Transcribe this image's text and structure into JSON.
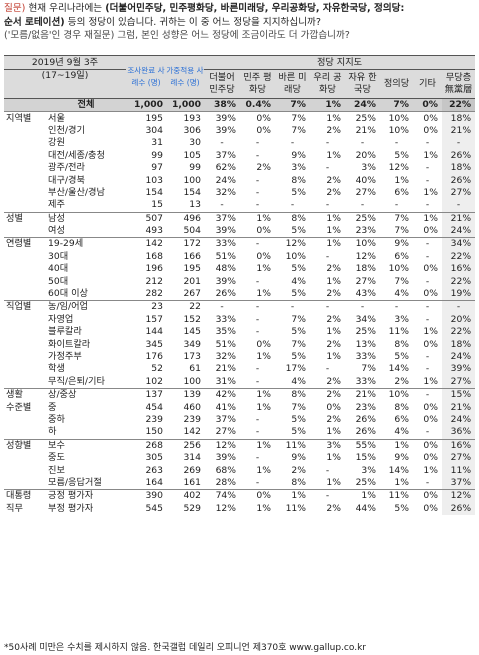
{
  "question": {
    "tag": "질문)",
    "pre": "현재 우리나라에는",
    "parties": "(더불어민주당, 민주평화당, 바른미래당, 우리공화당, 자유한국당, 정의당:",
    "line2_hl": "순서 로테이션)",
    "line2_rest": "등의 정당이 있습니다. 귀하는 이 중 어느 정당을 지지하십니까?",
    "note": "('모름/없음'인 경우 재질문) 그럼, 본인 성향은 어느 정당에 조금이라도 더 가깝습니까?"
  },
  "header": {
    "period": "2019년 9월 3주",
    "dates": "(17~19일)",
    "sample": "조사완료 사례수 (명)",
    "weighted": "가중적용 사례수 (명)",
    "group": "정당 지지도",
    "parties": [
      "더불어 민주당",
      "민주 평화당",
      "바른 미래당",
      "우리 공화당",
      "자유 한국당",
      "정의당",
      "기타",
      "무당층 無黨層"
    ]
  },
  "colors": {
    "blue": "#2a6fd6",
    "red": "#d62728",
    "header_bg": "#dcdcdc"
  },
  "rows": [
    {
      "g": "",
      "s": "전체",
      "n": "1,000",
      "w": "1,000",
      "v": [
        "38%",
        "0.4%",
        "7%",
        "1%",
        "24%",
        "7%",
        "0%",
        "22%"
      ],
      "total": true
    },
    {
      "g": "지역별",
      "s": "서울",
      "n": "195",
      "w": "193",
      "v": [
        "39%",
        "0%",
        "7%",
        "1%",
        "25%",
        "10%",
        "0%",
        "18%"
      ],
      "gs": true
    },
    {
      "g": "",
      "s": "인천/경기",
      "n": "304",
      "w": "306",
      "v": [
        "39%",
        "0%",
        "7%",
        "2%",
        "21%",
        "10%",
        "0%",
        "21%"
      ]
    },
    {
      "g": "",
      "s": "강원",
      "n": "31",
      "w": "30",
      "v": [
        "-",
        "-",
        "-",
        "-",
        "-",
        "-",
        "-",
        "-"
      ]
    },
    {
      "g": "",
      "s": "대전/세종/충청",
      "n": "99",
      "w": "105",
      "v": [
        "37%",
        "-",
        "9%",
        "1%",
        "20%",
        "5%",
        "1%",
        "26%"
      ]
    },
    {
      "g": "",
      "s": "광주/전라",
      "n": "97",
      "w": "99",
      "v": [
        "62%",
        "2%",
        "3%",
        "-",
        "3%",
        "12%",
        "-",
        "18%"
      ]
    },
    {
      "g": "",
      "s": "대구/경북",
      "n": "103",
      "w": "100",
      "v": [
        "24%",
        "-",
        "8%",
        "2%",
        "40%",
        "1%",
        "-",
        "26%"
      ]
    },
    {
      "g": "",
      "s": "부산/울산/경남",
      "n": "154",
      "w": "154",
      "v": [
        "32%",
        "-",
        "5%",
        "2%",
        "27%",
        "6%",
        "1%",
        "27%"
      ]
    },
    {
      "g": "",
      "s": "제주",
      "n": "15",
      "w": "13",
      "v": [
        "-",
        "-",
        "-",
        "-",
        "-",
        "-",
        "-",
        "-"
      ]
    },
    {
      "g": "성별",
      "s": "남성",
      "n": "507",
      "w": "496",
      "v": [
        "37%",
        "1%",
        "8%",
        "1%",
        "25%",
        "7%",
        "1%",
        "21%"
      ],
      "gs": true
    },
    {
      "g": "",
      "s": "여성",
      "n": "493",
      "w": "504",
      "v": [
        "39%",
        "0%",
        "5%",
        "1%",
        "23%",
        "7%",
        "0%",
        "24%"
      ]
    },
    {
      "g": "연령별",
      "s": "19-29세",
      "n": "142",
      "w": "172",
      "v": [
        "33%",
        "-",
        "12%",
        "1%",
        "10%",
        "9%",
        "-",
        "34%"
      ],
      "gs": true
    },
    {
      "g": "",
      "s": "30대",
      "n": "168",
      "w": "166",
      "v": [
        "51%",
        "0%",
        "10%",
        "-",
        "12%",
        "6%",
        "-",
        "22%"
      ]
    },
    {
      "g": "",
      "s": "40대",
      "n": "196",
      "w": "195",
      "v": [
        "48%",
        "1%",
        "5%",
        "2%",
        "18%",
        "10%",
        "0%",
        "16%"
      ]
    },
    {
      "g": "",
      "s": "50대",
      "n": "212",
      "w": "201",
      "v": [
        "39%",
        "-",
        "4%",
        "1%",
        "27%",
        "7%",
        "-",
        "22%"
      ]
    },
    {
      "g": "",
      "s": "60대 이상",
      "n": "282",
      "w": "267",
      "v": [
        "26%",
        "1%",
        "5%",
        "2%",
        "43%",
        "4%",
        "0%",
        "19%"
      ]
    },
    {
      "g": "직업별",
      "s": "농/임/어업",
      "n": "23",
      "w": "22",
      "v": [
        "-",
        "-",
        "-",
        "-",
        "-",
        "-",
        "-",
        "-"
      ],
      "gs": true
    },
    {
      "g": "",
      "s": "자영업",
      "n": "157",
      "w": "152",
      "v": [
        "33%",
        "-",
        "7%",
        "2%",
        "34%",
        "3%",
        "-",
        "20%"
      ]
    },
    {
      "g": "",
      "s": "블루칼라",
      "n": "144",
      "w": "145",
      "v": [
        "35%",
        "-",
        "5%",
        "1%",
        "25%",
        "11%",
        "1%",
        "22%"
      ]
    },
    {
      "g": "",
      "s": "화이트칼라",
      "n": "345",
      "w": "349",
      "v": [
        "51%",
        "0%",
        "7%",
        "2%",
        "13%",
        "8%",
        "0%",
        "18%"
      ]
    },
    {
      "g": "",
      "s": "가정주부",
      "n": "176",
      "w": "173",
      "v": [
        "32%",
        "1%",
        "5%",
        "1%",
        "33%",
        "5%",
        "-",
        "24%"
      ]
    },
    {
      "g": "",
      "s": "학생",
      "n": "52",
      "w": "61",
      "v": [
        "21%",
        "-",
        "17%",
        "-",
        "7%",
        "14%",
        "-",
        "39%"
      ]
    },
    {
      "g": "",
      "s": "무직/은퇴/기타",
      "n": "102",
      "w": "100",
      "v": [
        "31%",
        "-",
        "4%",
        "2%",
        "33%",
        "2%",
        "1%",
        "27%"
      ]
    },
    {
      "g": "생활",
      "s": "상/중상",
      "n": "137",
      "w": "139",
      "v": [
        "42%",
        "1%",
        "8%",
        "2%",
        "21%",
        "10%",
        "-",
        "15%"
      ],
      "gs": true
    },
    {
      "g": "수준별",
      "s": "중",
      "n": "454",
      "w": "460",
      "v": [
        "41%",
        "1%",
        "7%",
        "0%",
        "23%",
        "8%",
        "0%",
        "21%"
      ]
    },
    {
      "g": "",
      "s": "중하",
      "n": "239",
      "w": "239",
      "v": [
        "37%",
        "-",
        "5%",
        "2%",
        "26%",
        "6%",
        "0%",
        "24%"
      ]
    },
    {
      "g": "",
      "s": "하",
      "n": "150",
      "w": "142",
      "v": [
        "27%",
        "-",
        "5%",
        "1%",
        "26%",
        "4%",
        "-",
        "36%"
      ]
    },
    {
      "g": "성향별",
      "s": "보수",
      "n": "268",
      "w": "256",
      "v": [
        "12%",
        "1%",
        "11%",
        "3%",
        "55%",
        "1%",
        "0%",
        "16%"
      ],
      "gs": true
    },
    {
      "g": "",
      "s": "중도",
      "n": "305",
      "w": "314",
      "v": [
        "39%",
        "-",
        "9%",
        "1%",
        "15%",
        "9%",
        "0%",
        "27%"
      ]
    },
    {
      "g": "",
      "s": "진보",
      "n": "263",
      "w": "269",
      "v": [
        "68%",
        "1%",
        "2%",
        "-",
        "3%",
        "14%",
        "1%",
        "11%"
      ]
    },
    {
      "g": "",
      "s": "모름/응답거절",
      "n": "164",
      "w": "161",
      "v": [
        "28%",
        "-",
        "8%",
        "1%",
        "25%",
        "1%",
        "-",
        "37%"
      ]
    },
    {
      "g": "대통령",
      "s": "긍정 평가자",
      "n": "390",
      "w": "402",
      "v": [
        "74%",
        "0%",
        "1%",
        "-",
        "1%",
        "11%",
        "0%",
        "12%"
      ],
      "gs": true
    },
    {
      "g": "직무",
      "s": "부정 평가자",
      "n": "545",
      "w": "529",
      "v": [
        "12%",
        "1%",
        "11%",
        "2%",
        "44%",
        "5%",
        "0%",
        "26%"
      ]
    }
  ],
  "footer": "*50사례 미만은 수치를 제시하지 않음. 한국갤럽 데일리 오피니언 제370호 www.gallup.co.kr"
}
